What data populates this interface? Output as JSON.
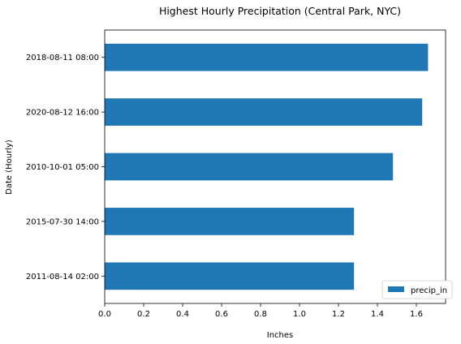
{
  "chart_data": {
    "type": "bar",
    "orientation": "horizontal",
    "title": "Highest Hourly Precipitation (Central Park, NYC)",
    "xlabel": "Inches",
    "ylabel": "Date (Hourly)",
    "categories": [
      "2018-08-11 08:00",
      "2020-08-12 16:00",
      "2010-10-01 05:00",
      "2015-07-30 14:00",
      "2011-08-14 02:00"
    ],
    "series": [
      {
        "name": "precip_in",
        "values": [
          1.66,
          1.63,
          1.48,
          1.28,
          1.28
        ],
        "color": "#1f77b4"
      }
    ],
    "xlim": [
      0,
      1.75
    ],
    "xticks": [
      "0.0",
      "0.2",
      "0.4",
      "0.6",
      "0.8",
      "1.0",
      "1.2",
      "1.4",
      "1.6"
    ],
    "grid": false,
    "legend": "bottom-right"
  }
}
